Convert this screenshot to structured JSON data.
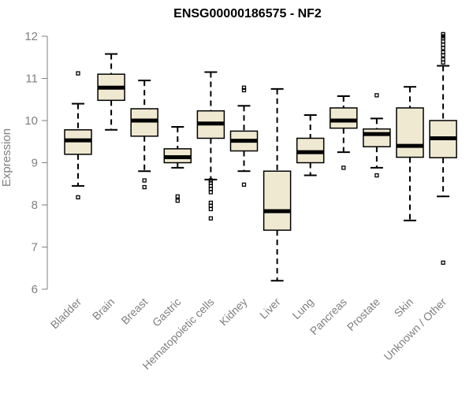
{
  "chart_data": {
    "type": "boxplot",
    "title": "ENSG00000186575 - NF2",
    "ylabel": "Expression",
    "ylim": [
      6,
      12
    ],
    "yticks": [
      6,
      7,
      8,
      9,
      10,
      11,
      12
    ],
    "grid": false,
    "colors": {
      "box_fill": "#efe9d2",
      "stroke": "#000000",
      "axis": "#7f7f7f"
    },
    "categories": [
      "Bladder",
      "Brain",
      "Breast",
      "Gastric",
      "Hematopoietic cells",
      "Kidney",
      "Liver",
      "Lung",
      "Pancreas",
      "Prostate",
      "Skin",
      "Unknown / Other"
    ],
    "boxes": [
      {
        "min": 8.45,
        "q1": 9.2,
        "median": 9.53,
        "q3": 9.78,
        "max": 10.4,
        "outliers": [
          11.12,
          8.18
        ]
      },
      {
        "min": 9.78,
        "q1": 10.48,
        "median": 10.78,
        "q3": 11.1,
        "max": 11.58,
        "outliers": []
      },
      {
        "min": 8.8,
        "q1": 9.63,
        "median": 10.0,
        "q3": 10.28,
        "max": 10.95,
        "outliers": [
          8.58,
          8.42
        ]
      },
      {
        "min": 8.88,
        "q1": 9.0,
        "median": 9.13,
        "q3": 9.33,
        "max": 9.85,
        "outliers": [
          8.2,
          8.1
        ]
      },
      {
        "min": 8.6,
        "q1": 9.58,
        "median": 9.93,
        "q3": 10.23,
        "max": 11.15,
        "outliers": [
          8.58,
          8.52,
          8.45,
          8.38,
          8.3,
          8.05,
          7.98,
          7.9,
          7.68
        ]
      },
      {
        "min": 8.8,
        "q1": 9.28,
        "median": 9.52,
        "q3": 9.75,
        "max": 10.35,
        "outliers": [
          10.78,
          10.72,
          8.48
        ]
      },
      {
        "min": 6.2,
        "q1": 7.4,
        "median": 7.85,
        "q3": 8.8,
        "max": 10.75,
        "outliers": []
      },
      {
        "min": 8.7,
        "q1": 9.0,
        "median": 9.25,
        "q3": 9.58,
        "max": 10.13,
        "outliers": []
      },
      {
        "min": 9.25,
        "q1": 9.82,
        "median": 10.0,
        "q3": 10.3,
        "max": 10.58,
        "outliers": [
          8.88
        ]
      },
      {
        "min": 8.88,
        "q1": 9.38,
        "median": 9.68,
        "q3": 9.8,
        "max": 10.05,
        "outliers": [
          10.6,
          8.7
        ]
      },
      {
        "min": 7.63,
        "q1": 9.13,
        "median": 9.4,
        "q3": 10.3,
        "max": 10.8,
        "outliers": []
      },
      {
        "min": 8.2,
        "q1": 9.12,
        "median": 9.58,
        "q3": 10.0,
        "max": 11.3,
        "outliers": [
          12.05,
          12.0,
          11.95,
          11.88,
          11.8,
          11.72,
          11.62,
          11.55,
          11.45,
          11.38,
          6.63
        ]
      }
    ]
  }
}
